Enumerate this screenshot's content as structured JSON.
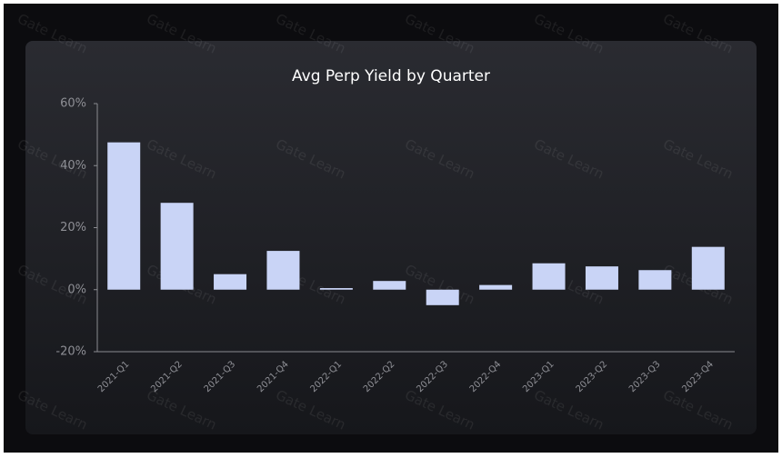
{
  "watermark": "Gate Learn",
  "chart_data": {
    "type": "bar",
    "title": "Avg Perp Yield by Quarter",
    "categories": [
      "2021-Q1",
      "2021-Q2",
      "2021-Q3",
      "2021-Q4",
      "2022-Q1",
      "2022-Q2",
      "2022-Q3",
      "2022-Q4",
      "2023-Q1",
      "2023-Q2",
      "2023-Q3",
      "2023-Q4"
    ],
    "values": [
      47.5,
      28,
      5,
      12.5,
      0.5,
      2.8,
      -5,
      1.5,
      8.5,
      7.5,
      6.3,
      13.8
    ],
    "color": "#c9d4f6",
    "ylim": [
      -20,
      60
    ],
    "yticks": [
      {
        "value": -20,
        "label": "-20%"
      },
      {
        "value": 0,
        "label": "0%"
      },
      {
        "value": 20,
        "label": "20%"
      },
      {
        "value": 40,
        "label": "40%"
      },
      {
        "value": 60,
        "label": "60%"
      }
    ],
    "grid": false
  }
}
